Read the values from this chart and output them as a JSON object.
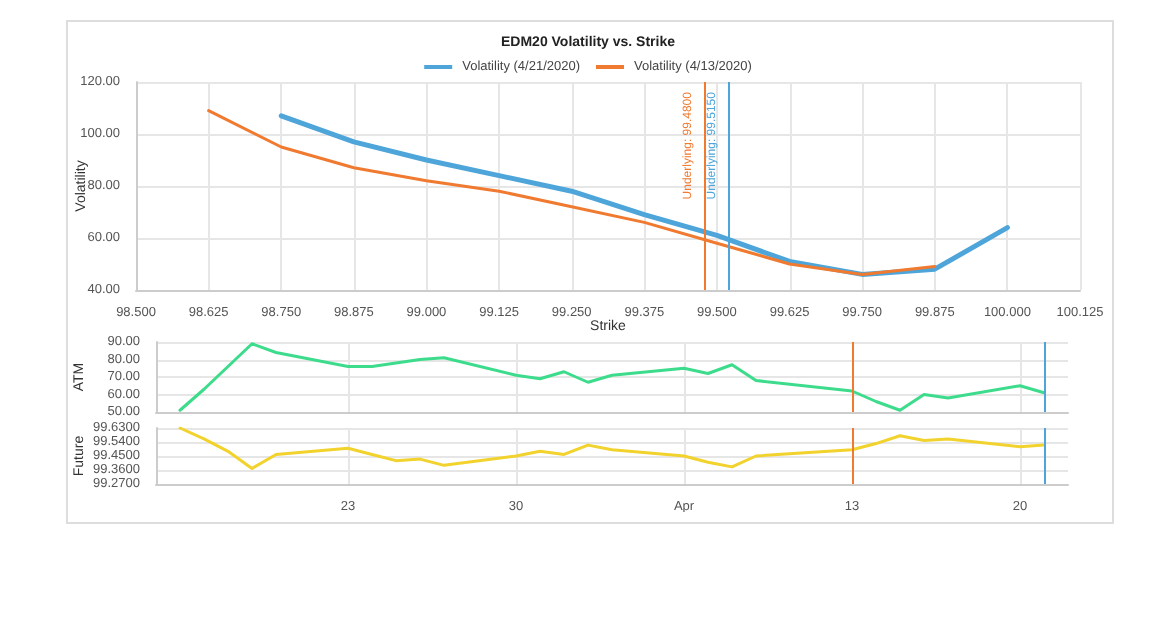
{
  "chart_data": [
    {
      "type": "line",
      "title": "EDM20 Volatility vs. Strike",
      "xlabel": "Strike",
      "ylabel": "Volatility",
      "xlim": [
        98.5,
        100.125
      ],
      "xticks": [
        {
          "value": 98.5,
          "label": "98.500"
        },
        {
          "value": 98.625,
          "label": "98.625"
        },
        {
          "value": 98.75,
          "label": "98.750"
        },
        {
          "value": 98.875,
          "label": "98.875"
        },
        {
          "value": 99,
          "label": "99.000"
        },
        {
          "value": 99.125,
          "label": "99.125"
        },
        {
          "value": 99.25,
          "label": "99.250"
        },
        {
          "value": 99.375,
          "label": "99.375"
        },
        {
          "value": 99.5,
          "label": "99.500"
        },
        {
          "value": 99.625,
          "label": "99.625"
        },
        {
          "value": 99.75,
          "label": "99.750"
        },
        {
          "value": 99.875,
          "label": "99.875"
        },
        {
          "value": 100,
          "label": "100.000"
        },
        {
          "value": 100.125,
          "label": "100.125"
        }
      ],
      "ylim": [
        40,
        120
      ],
      "yticks": [
        {
          "value": 40,
          "label": "40.00"
        },
        {
          "value": 60,
          "label": "60.00"
        },
        {
          "value": 80,
          "label": "80.00"
        },
        {
          "value": 100,
          "label": "100.00"
        },
        {
          "value": 120,
          "label": "120.00"
        }
      ],
      "grid": true,
      "legend": "top",
      "marker": "none",
      "line_style": "solid",
      "series": [
        {
          "name": "Volatility (4/21/2020)",
          "color": "#4ea5d9",
          "x": [
            98.75,
            98.875,
            99,
            99.125,
            99.25,
            99.375,
            99.5,
            99.625,
            99.75,
            99.875,
            100
          ],
          "values": [
            107,
            97,
            90,
            84,
            78,
            69,
            61,
            51,
            46,
            48,
            64
          ]
        },
        {
          "name": "Volatility (4/13/2020)",
          "color": "#ef7a30",
          "x": [
            98.625,
            98.75,
            98.875,
            99,
            99.125,
            99.25,
            99.375,
            99.5,
            99.625,
            99.75,
            99.875
          ],
          "values": [
            109,
            95,
            87,
            82,
            78,
            72,
            66,
            58,
            50,
            46,
            49
          ]
        }
      ],
      "ref_lines": [
        {
          "axis": "x",
          "value": 99.48,
          "label": "Underlying: 99.4800",
          "color": "#ef7a30"
        },
        {
          "axis": "x",
          "value": 99.515,
          "label": "Underlying: 99.5150",
          "color": "#4ea5d9"
        }
      ]
    },
    {
      "type": "line",
      "ylabel": "ATM",
      "tick_labels": "y",
      "grid": true,
      "marker": "none",
      "line_style": "solid",
      "xlim": [
        "2020-03-15",
        "2020-04-22"
      ],
      "ylim": [
        50,
        90
      ],
      "yticks": [
        {
          "value": 50,
          "label": "50.00"
        },
        {
          "value": 60,
          "label": "60.00"
        },
        {
          "value": 70,
          "label": "70.00"
        },
        {
          "value": 80,
          "label": "80.00"
        },
        {
          "value": 90,
          "label": "90.00"
        }
      ],
      "xticks": [
        {
          "value": "2020-03-23",
          "label": null
        },
        {
          "value": "2020-03-30",
          "label": null
        },
        {
          "value": "2020-04-06",
          "label": null
        },
        {
          "value": "2020-04-13",
          "label": null
        },
        {
          "value": "2020-04-20",
          "label": null
        }
      ],
      "x": [
        "2020-03-16",
        "2020-03-17",
        "2020-03-18",
        "2020-03-19",
        "2020-03-20",
        "2020-03-23",
        "2020-03-24",
        "2020-03-25",
        "2020-03-26",
        "2020-03-27",
        "2020-03-30",
        "2020-03-31",
        "2020-04-01",
        "2020-04-02",
        "2020-04-03",
        "2020-04-06",
        "2020-04-07",
        "2020-04-08",
        "2020-04-09",
        "2020-04-13",
        "2020-04-14",
        "2020-04-15",
        "2020-04-16",
        "2020-04-17",
        "2020-04-20",
        "2020-04-21"
      ],
      "series": [
        {
          "color": "#3ddc8c",
          "values": [
            51,
            63,
            76,
            89,
            84,
            76,
            76,
            78,
            80,
            81,
            71,
            69,
            73,
            67,
            71,
            75,
            72,
            77,
            68,
            62,
            56,
            51,
            60,
            58,
            65,
            61
          ]
        }
      ],
      "ref_lines": [
        {
          "axis": "x",
          "value": "2020-04-13",
          "color": "#ef7a30"
        },
        {
          "axis": "x",
          "value": "2020-04-21",
          "color": "#4ea5d9"
        }
      ]
    },
    {
      "type": "line",
      "ylabel": "Future",
      "grid": true,
      "marker": "none",
      "line_style": "solid",
      "xlim": [
        "2020-03-15",
        "2020-04-22"
      ],
      "ylim": [
        99.27,
        99.63
      ],
      "yticks": [
        {
          "value": 99.27,
          "label": "99.2700"
        },
        {
          "value": 99.36,
          "label": "99.3600"
        },
        {
          "value": 99.45,
          "label": "99.4500"
        },
        {
          "value": 99.54,
          "label": "99.5400"
        },
        {
          "value": 99.63,
          "label": "99.6300"
        }
      ],
      "xticks": [
        {
          "value": "2020-03-23",
          "label": "23"
        },
        {
          "value": "2020-03-30",
          "label": "30"
        },
        {
          "value": "2020-04-06",
          "label": "Apr"
        },
        {
          "value": "2020-04-13",
          "label": "13"
        },
        {
          "value": "2020-04-20",
          "label": "20"
        }
      ],
      "x": [
        "2020-03-16",
        "2020-03-17",
        "2020-03-18",
        "2020-03-19",
        "2020-03-20",
        "2020-03-23",
        "2020-03-24",
        "2020-03-25",
        "2020-03-26",
        "2020-03-27",
        "2020-03-30",
        "2020-03-31",
        "2020-04-01",
        "2020-04-02",
        "2020-04-03",
        "2020-04-06",
        "2020-04-07",
        "2020-04-08",
        "2020-04-09",
        "2020-04-13",
        "2020-04-14",
        "2020-04-15",
        "2020-04-16",
        "2020-04-17",
        "2020-04-20",
        "2020-04-21"
      ],
      "series": [
        {
          "color": "#f2d22c",
          "values": [
            99.63,
            99.56,
            99.48,
            99.37,
            99.46,
            99.5,
            99.46,
            99.42,
            99.43,
            99.39,
            99.45,
            99.48,
            99.46,
            99.52,
            99.49,
            99.45,
            99.41,
            99.38,
            99.45,
            99.49,
            99.53,
            99.58,
            99.55,
            99.56,
            99.51,
            99.52
          ]
        }
      ],
      "ref_lines": [
        {
          "axis": "x",
          "value": "2020-04-13",
          "color": "#ef7a30"
        },
        {
          "axis": "x",
          "value": "2020-04-21",
          "color": "#4ea5d9"
        }
      ]
    }
  ]
}
